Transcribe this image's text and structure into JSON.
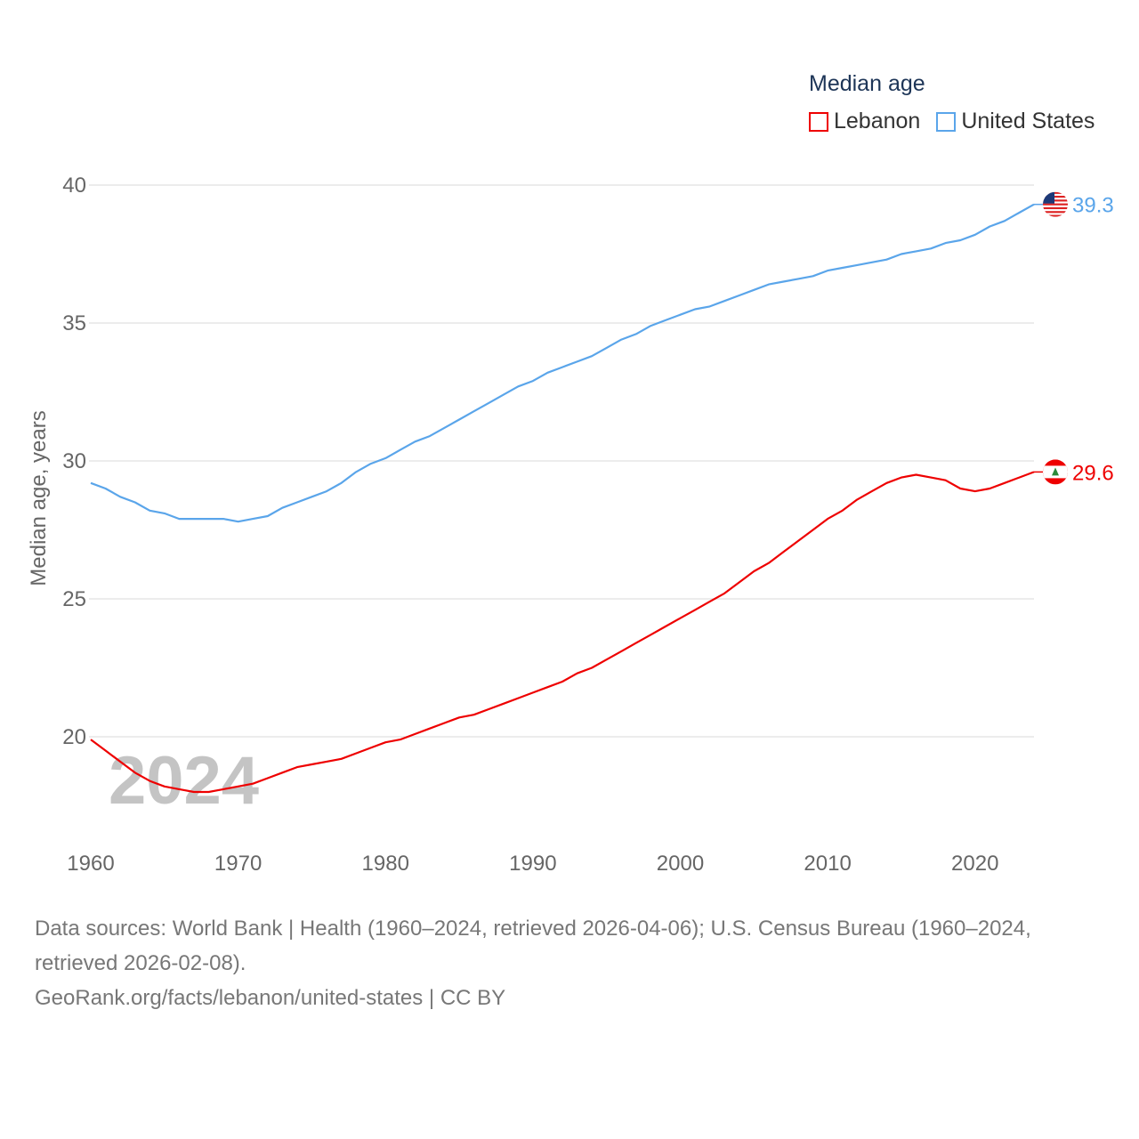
{
  "chart_data": {
    "type": "line",
    "title": "Median age",
    "xlabel": "",
    "ylabel": "Median age, years",
    "xlim": [
      1960,
      2024
    ],
    "ylim": [
      17,
      40
    ],
    "yticks": [
      20,
      25,
      30,
      35,
      40
    ],
    "xticks": [
      1960,
      1970,
      1980,
      1990,
      2000,
      2010,
      2020
    ],
    "grid": true,
    "legend_position": "top-right",
    "watermark_year": "2024",
    "x": [
      1960,
      1961,
      1962,
      1963,
      1964,
      1965,
      1966,
      1967,
      1968,
      1969,
      1970,
      1971,
      1972,
      1973,
      1974,
      1975,
      1976,
      1977,
      1978,
      1979,
      1980,
      1981,
      1982,
      1983,
      1984,
      1985,
      1986,
      1987,
      1988,
      1989,
      1990,
      1991,
      1992,
      1993,
      1994,
      1995,
      1996,
      1997,
      1998,
      1999,
      2000,
      2001,
      2002,
      2003,
      2004,
      2005,
      2006,
      2007,
      2008,
      2009,
      2010,
      2011,
      2012,
      2013,
      2014,
      2015,
      2016,
      2017,
      2018,
      2019,
      2020,
      2021,
      2022,
      2023,
      2024
    ],
    "series": [
      {
        "name": "Lebanon",
        "color": "#ee0000",
        "end_label": "29.6",
        "flag": "lebanon-flag",
        "values": [
          19.9,
          19.5,
          19.1,
          18.7,
          18.4,
          18.2,
          18.1,
          18.0,
          18.0,
          18.1,
          18.2,
          18.3,
          18.5,
          18.7,
          18.9,
          19.0,
          19.1,
          19.2,
          19.4,
          19.6,
          19.8,
          19.9,
          20.1,
          20.3,
          20.5,
          20.7,
          20.8,
          21.0,
          21.2,
          21.4,
          21.6,
          21.8,
          22.0,
          22.3,
          22.5,
          22.8,
          23.1,
          23.4,
          23.7,
          24.0,
          24.3,
          24.6,
          24.9,
          25.2,
          25.6,
          26.0,
          26.3,
          26.7,
          27.1,
          27.5,
          27.9,
          28.2,
          28.6,
          28.9,
          29.2,
          29.4,
          29.5,
          29.4,
          29.3,
          29.0,
          28.9,
          29.0,
          29.2,
          29.4,
          29.6
        ]
      },
      {
        "name": "United States",
        "color": "#5aa5ea",
        "end_label": "39.3",
        "flag": "us-flag",
        "values": [
          29.2,
          29.0,
          28.7,
          28.5,
          28.2,
          28.1,
          27.9,
          27.9,
          27.9,
          27.9,
          27.8,
          27.9,
          28.0,
          28.3,
          28.5,
          28.7,
          28.9,
          29.2,
          29.6,
          29.9,
          30.1,
          30.4,
          30.7,
          30.9,
          31.2,
          31.5,
          31.8,
          32.1,
          32.4,
          32.7,
          32.9,
          33.2,
          33.4,
          33.6,
          33.8,
          34.1,
          34.4,
          34.6,
          34.9,
          35.1,
          35.3,
          35.5,
          35.6,
          35.8,
          36.0,
          36.2,
          36.4,
          36.5,
          36.6,
          36.7,
          36.9,
          37.0,
          37.1,
          37.2,
          37.3,
          37.5,
          37.6,
          37.7,
          37.9,
          38.0,
          38.2,
          38.5,
          38.7,
          39.0,
          39.3
        ]
      }
    ]
  },
  "footer": {
    "sources": "Data sources: World Bank | Health (1960–2024, retrieved 2026-04-06); U.S. Census Bureau (1960–2024, retrieved 2026-02-08).",
    "credit": "GeoRank.org/facts/lebanon/united-states | CC BY"
  }
}
